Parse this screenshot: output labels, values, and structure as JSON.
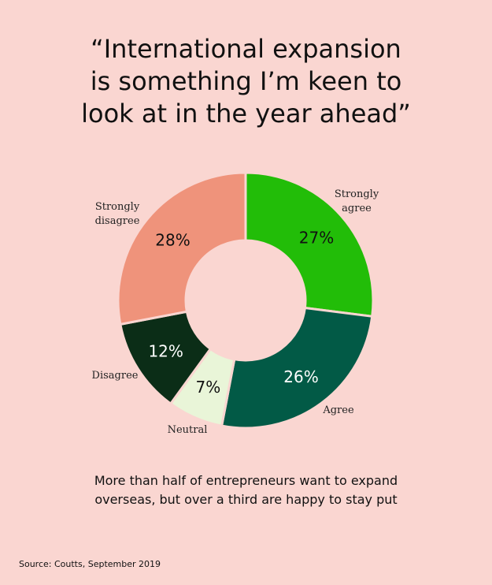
{
  "title_lines": [
    "“International expansion",
    "is something I’m keen to",
    "look at in the year ahead”"
  ],
  "caption_lines": [
    "More than half of entrepreneurs want to expand",
    "overseas, but over a third are happy to stay put"
  ],
  "source": "Source: Coutts, September 2019",
  "chart_data": {
    "type": "pie",
    "style": "donut",
    "slices": [
      {
        "category": [
          "Strongly",
          "agree"
        ],
        "value": 27,
        "label": "27%",
        "color": "#22bd08"
      },
      {
        "category": [
          "Agree"
        ],
        "value": 26,
        "label": "26%",
        "color": "#025a46"
      },
      {
        "category": [
          "Neutral"
        ],
        "value": 7,
        "label": "7%",
        "color": "#e9f5d8"
      },
      {
        "category": [
          "Disagree"
        ],
        "value": 12,
        "label": "12%",
        "color": "#0b2d17"
      },
      {
        "category": [
          "Strongly",
          "disagree"
        ],
        "value": 28,
        "label": "28%",
        "color": "#ef937b"
      }
    ]
  }
}
